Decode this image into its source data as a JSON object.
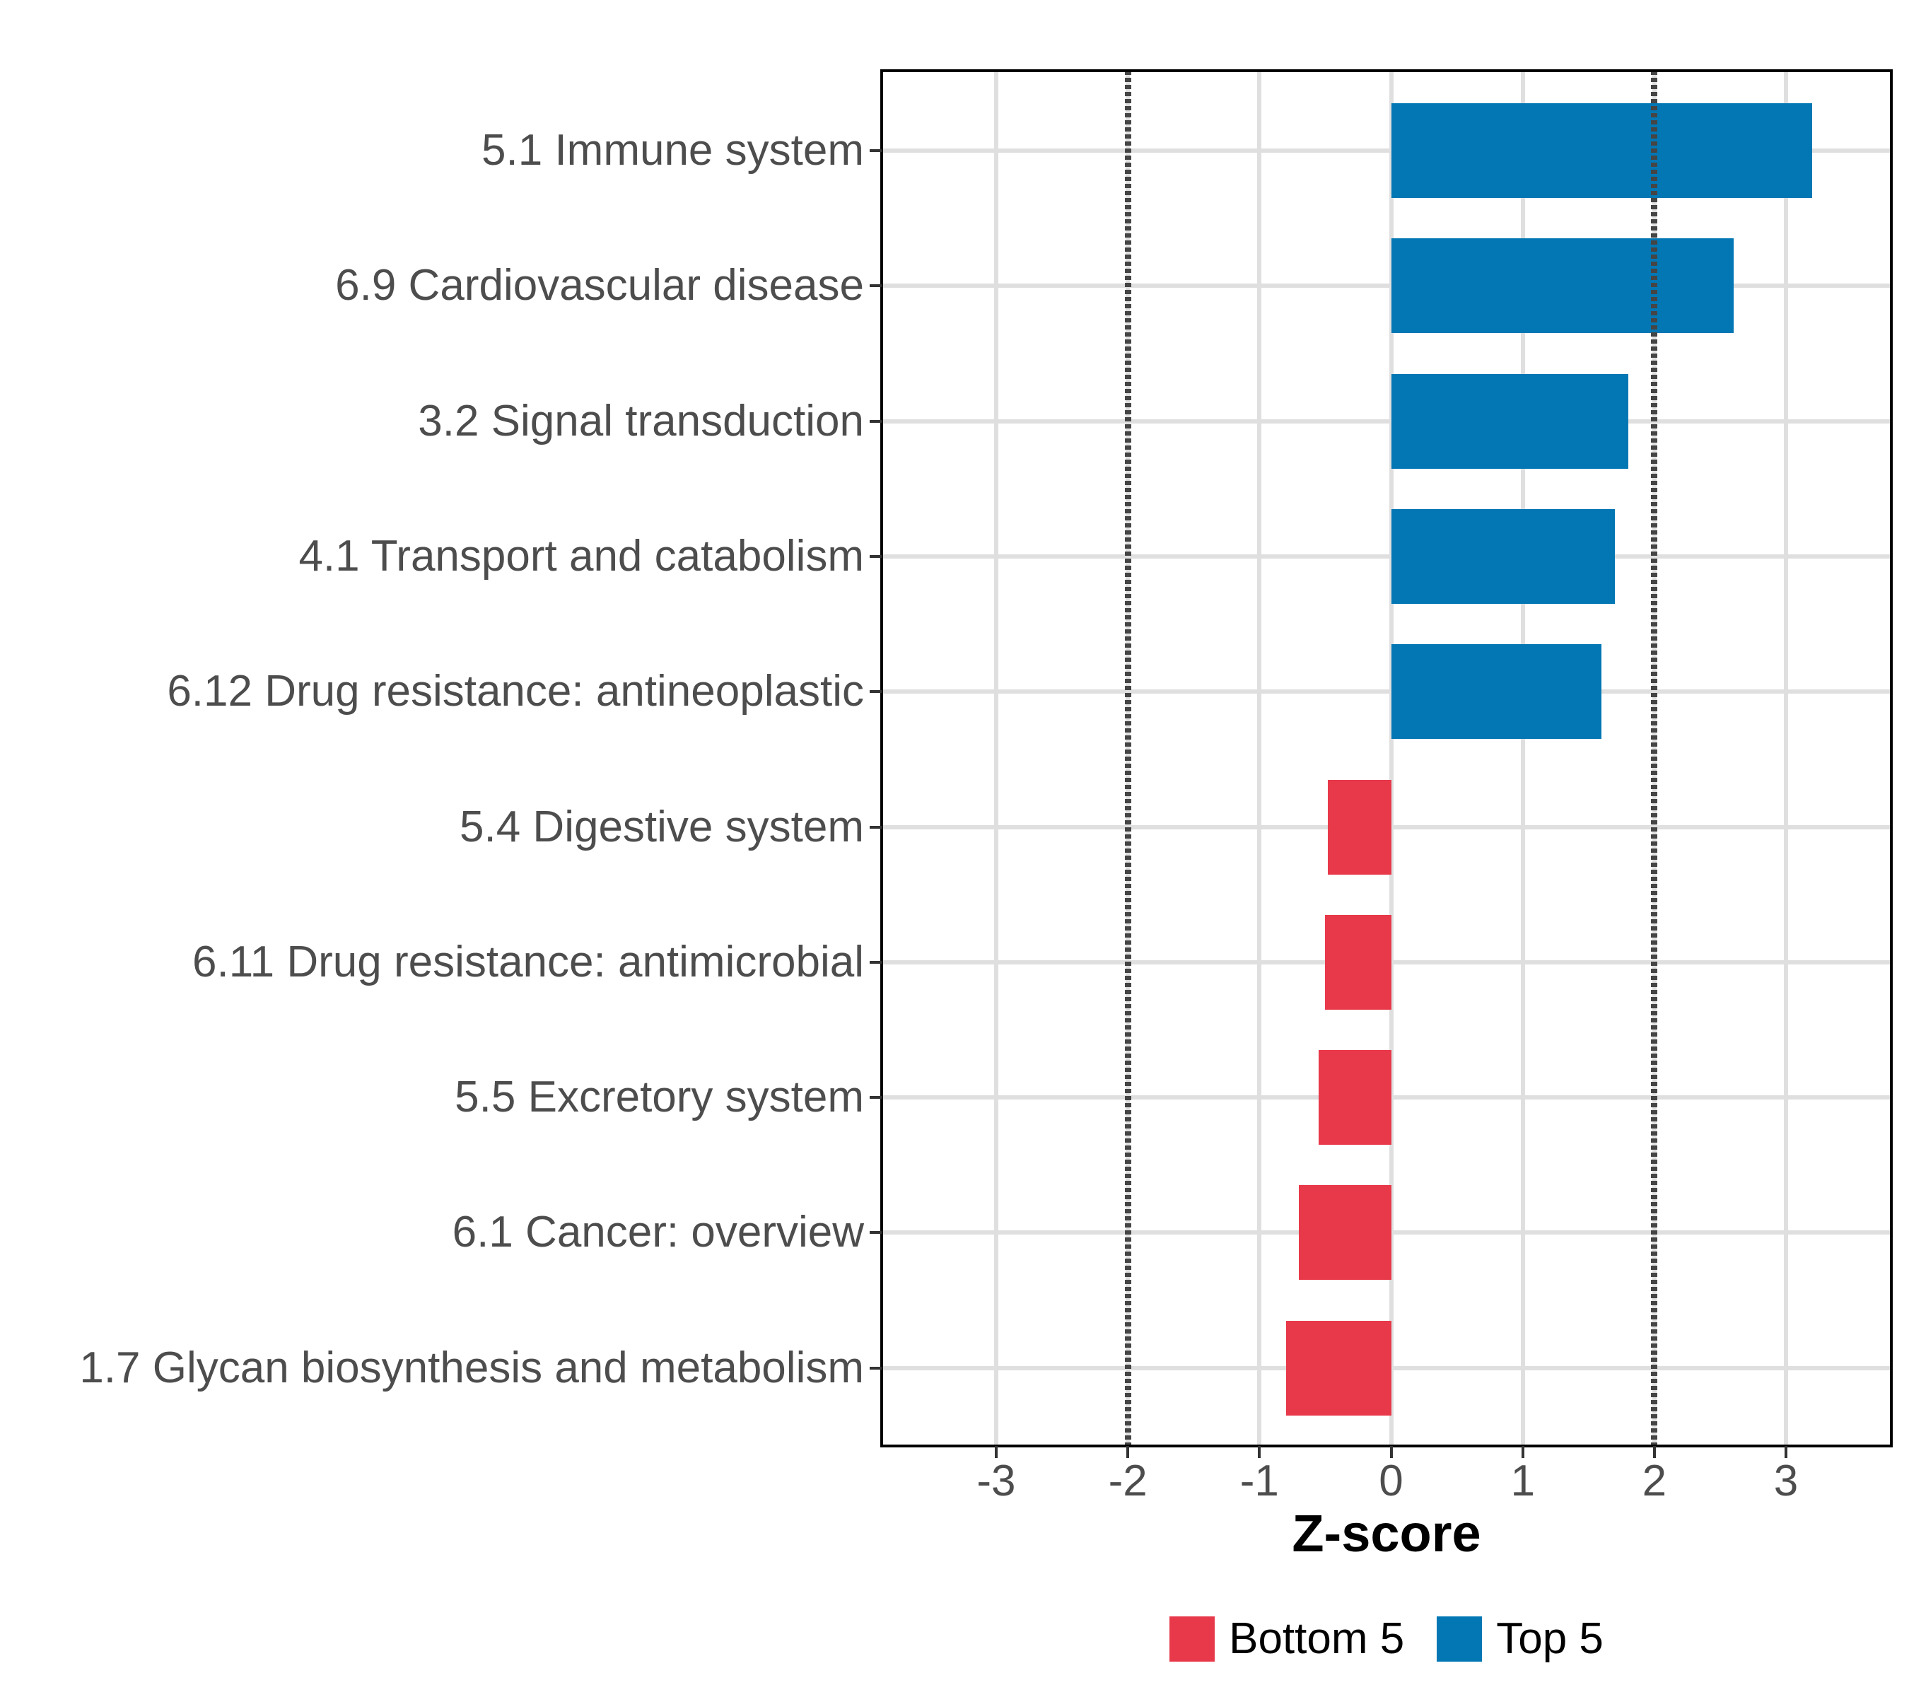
{
  "chart_data": {
    "type": "bar",
    "orientation": "horizontal",
    "title": "",
    "xlabel": "Z-score",
    "ylabel": "",
    "categories": [
      "5.1 Immune system",
      "6.9 Cardiovascular disease",
      "3.2 Signal transduction",
      "4.1 Transport and catabolism",
      "6.12 Drug resistance: antineoplastic",
      "5.4 Digestive system",
      "6.11 Drug resistance: antimicrobial",
      "5.5 Excretory system",
      "6.1 Cancer: overview",
      "1.7 Glycan biosynthesis and metabolism"
    ],
    "values": [
      3.2,
      2.6,
      1.8,
      1.7,
      1.6,
      -0.48,
      -0.5,
      -0.55,
      -0.7,
      -0.8
    ],
    "groups": [
      "Top 5",
      "Top 5",
      "Top 5",
      "Top 5",
      "Top 5",
      "Bottom 5",
      "Bottom 5",
      "Bottom 5",
      "Bottom 5",
      "Bottom 5"
    ],
    "x_ticks": [
      -3,
      -2,
      -1,
      0,
      1,
      2,
      3
    ],
    "x_tick_labels": [
      "-3",
      "-2",
      "-1",
      "0",
      "1",
      "2",
      "3"
    ],
    "xlim": [
      -3.87,
      3.8
    ],
    "reference_lines": [
      -2,
      2
    ],
    "grid": true,
    "legend_position": "bottom",
    "legend": [
      {
        "label": "Bottom 5",
        "color": "#E8394A"
      },
      {
        "label": "Top 5",
        "color": "#0277B4"
      }
    ],
    "colors": {
      "top5": "#0277B4",
      "bottom5": "#E8394A",
      "gridline": "#DFDFDF",
      "reference_line": "#454545",
      "axis_text": "#4D4D4D",
      "axis_title": "#000000",
      "panel_border": "#000000",
      "tick_mark": "#333333"
    }
  }
}
